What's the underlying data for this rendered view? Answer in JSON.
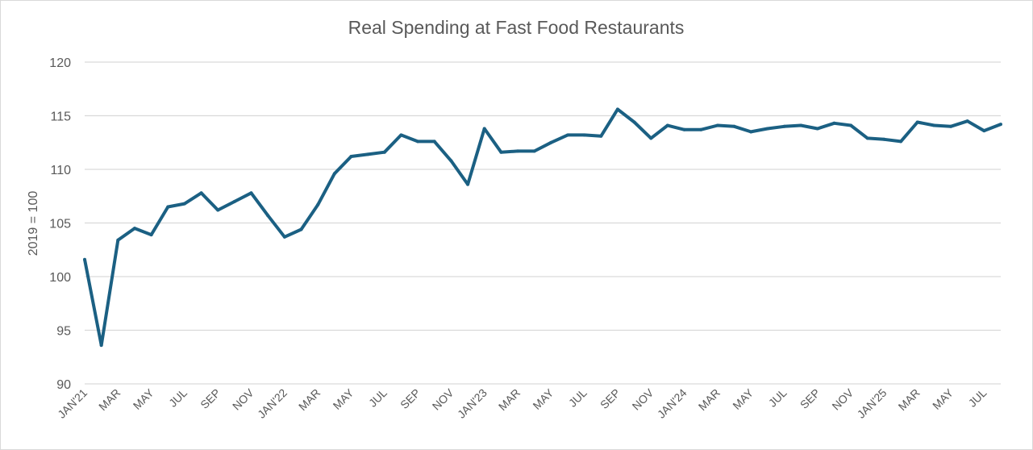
{
  "chart_data": {
    "type": "line",
    "title": "Real Spending at Fast Food Restaurants",
    "xlabel": "",
    "ylabel": "2019 = 100",
    "ylim": [
      90,
      120
    ],
    "yticks": [
      90,
      95,
      100,
      105,
      110,
      115,
      120
    ],
    "grid": true,
    "legend": "none",
    "line_color": "#1b6083",
    "x_tick_labels": [
      "JAN'21",
      "MAR",
      "MAY",
      "JUL",
      "SEP",
      "NOV",
      "JAN'22",
      "MAR",
      "MAY",
      "JUL",
      "SEP",
      "NOV",
      "JAN'23",
      "MAR",
      "MAY",
      "JUL",
      "SEP",
      "NOV",
      "JAN'24",
      "MAR",
      "MAY",
      "JUL",
      "SEP",
      "NOV",
      "JAN'25",
      "MAR",
      "MAY",
      "JUL"
    ],
    "series": [
      {
        "name": "Real Spending at Fast Food Restaurants",
        "x": [
          "2021-01",
          "2021-02",
          "2021-03",
          "2021-04",
          "2021-05",
          "2021-06",
          "2021-07",
          "2021-08",
          "2021-09",
          "2021-10",
          "2021-11",
          "2021-12",
          "2022-01",
          "2022-02",
          "2022-03",
          "2022-04",
          "2022-05",
          "2022-06",
          "2022-07",
          "2022-08",
          "2022-09",
          "2022-10",
          "2022-11",
          "2022-12",
          "2023-01",
          "2023-02",
          "2023-03",
          "2023-04",
          "2023-05",
          "2023-06",
          "2023-07",
          "2023-08",
          "2023-09",
          "2023-10",
          "2023-11",
          "2023-12",
          "2024-01",
          "2024-02",
          "2024-03",
          "2024-04",
          "2024-05",
          "2024-06",
          "2024-07",
          "2024-08",
          "2024-09",
          "2024-10",
          "2024-11",
          "2024-12",
          "2025-01",
          "2025-02",
          "2025-03",
          "2025-04",
          "2025-05",
          "2025-06",
          "2025-07",
          "2025-08"
        ],
        "values": [
          101.6,
          93.6,
          103.4,
          104.5,
          103.9,
          106.5,
          106.8,
          107.8,
          106.2,
          107.0,
          107.8,
          105.7,
          103.7,
          104.4,
          106.7,
          109.6,
          111.2,
          111.4,
          111.6,
          113.2,
          112.6,
          112.6,
          110.8,
          108.6,
          113.8,
          111.6,
          111.7,
          111.7,
          112.5,
          113.2,
          113.2,
          113.1,
          115.6,
          114.4,
          112.9,
          114.1,
          113.7,
          113.7,
          114.1,
          114.0,
          113.5,
          113.8,
          114.0,
          114.1,
          113.8,
          114.3,
          114.1,
          112.9,
          112.8,
          112.6,
          114.4,
          114.1,
          114.0,
          114.5,
          113.6,
          114.2
        ]
      }
    ]
  }
}
